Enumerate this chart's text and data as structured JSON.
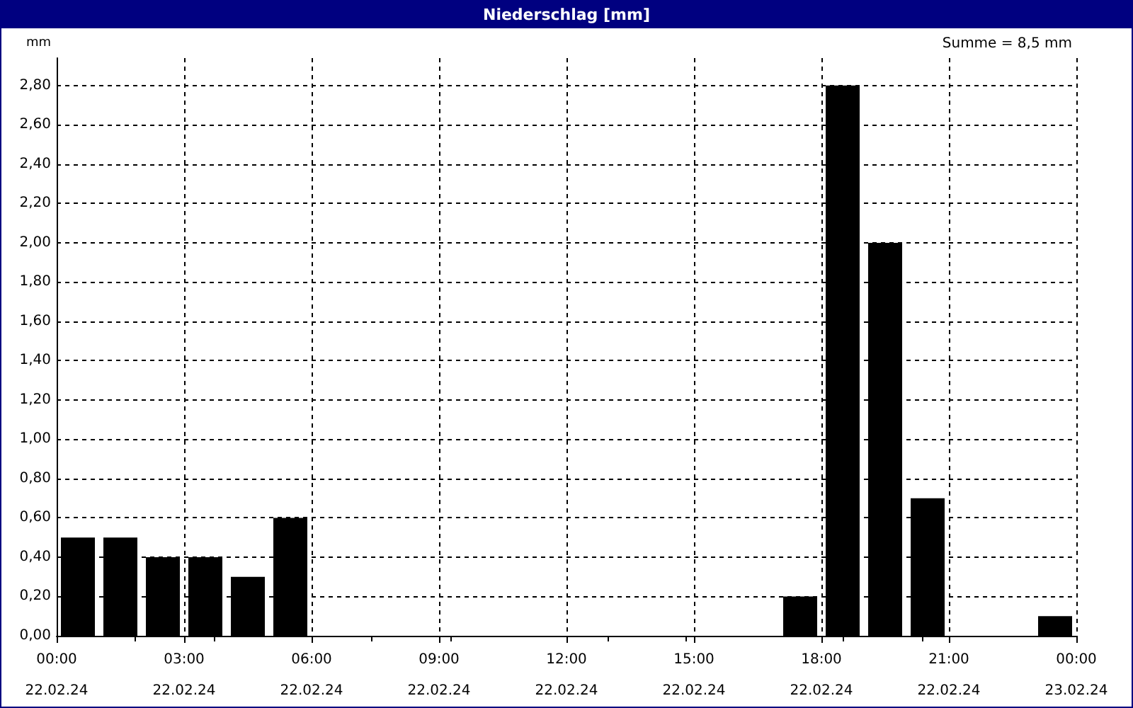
{
  "chart_data": {
    "type": "bar",
    "title": "Niederschlag [mm]",
    "ylabel": "mm",
    "annotations": [
      "Summe = 8,5 mm"
    ],
    "x": [
      "--02-22T00:30",
      "--02-22T01:30",
      "--02-22T02:30",
      "--02-22T03:30",
      "--02-22T04:30",
      "--02-22T05:30",
      "--02-22T06:30",
      "--02-22T07:30",
      "--02-22T08:30",
      "--02-22T09:30",
      "--02-22T10:30",
      "--02-22T11:30",
      "--02-22T12:30",
      "--02-22T13:30",
      "--02-22T14:30",
      "--02-22T15:30",
      "--02-22T16:30",
      "--02-22T17:30",
      "--02-22T18:30",
      "--02-22T19:30",
      "--02-22T20:30",
      "--02-22T21:30",
      "--02-22T22:30",
      "--02-22T23:30"
    ],
    "values": [
      0.5,
      0.5,
      0.4,
      0.4,
      0.3,
      0.6,
      0,
      0,
      0,
      0,
      0,
      0,
      0,
      0,
      0,
      0,
      0,
      0.2,
      2.8,
      2.0,
      0.7,
      0,
      0,
      0.1
    ],
    "color": "#000000",
    "xlim": [
      "--02-22T00:00",
      "--02-23T00:00"
    ],
    "xticks": [
      {
        "value": "--02-22T00:00",
        "label": "00:00\n22.02.24"
      },
      {
        "value": "--02-22T03:00",
        "label": "03:00\n22.02.24"
      },
      {
        "value": "--02-22T06:00",
        "label": "06:00\n22.02.24"
      },
      {
        "value": "--02-22T09:00",
        "label": "09:00\n22.02.24"
      },
      {
        "value": "--02-22T12:00",
        "label": "12:00\n22.02.24"
      },
      {
        "value": "--02-22T15:00",
        "label": "15:00\n22.02.24"
      },
      {
        "value": "--02-22T18:00",
        "label": "18:00\n22.02.24"
      },
      {
        "value": "--02-22T21:00",
        "label": "21:00\n22.02.24"
      },
      {
        "value": "--02-23T00:00",
        "label": "00:00\n23.02.24"
      }
    ],
    "ylim": [
      0,
      2.94
    ],
    "yticks": [
      {
        "value": 0,
        "label": "0,00"
      },
      {
        "value": 0.2,
        "label": "0,20"
      },
      {
        "value": 0.4,
        "label": "0,40"
      },
      {
        "value": 0.6,
        "label": "0,60"
      },
      {
        "value": 0.8,
        "label": "0,80"
      },
      {
        "value": 1.0,
        "label": "1,00"
      },
      {
        "value": 1.2,
        "label": "1,20"
      },
      {
        "value": 1.4,
        "label": "1,40"
      },
      {
        "value": 1.6,
        "label": "1,60"
      },
      {
        "value": 1.8,
        "label": "1,80"
      },
      {
        "value": 2.0,
        "label": "2,00"
      },
      {
        "value": 2.2,
        "label": "2,20"
      },
      {
        "value": 2.4,
        "label": "2,40"
      },
      {
        "value": 2.6,
        "label": "2,60"
      },
      {
        "value": 2.8,
        "label": "2,80"
      }
    ],
    "grid": true
  }
}
